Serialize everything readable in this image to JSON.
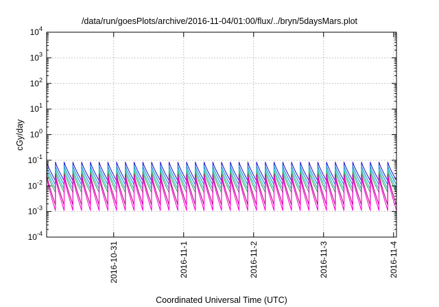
{
  "chart_data": {
    "type": "line",
    "title": "/data/run/goesPlots/archive/2016-11-04/01:00/flux/../bryn/5daysMars.plot",
    "xlabel": "Coordinated Universal Time (UTC)",
    "ylabel": "cGy/day",
    "yscale": "log",
    "ylim": [
      0.0001,
      10000
    ],
    "y_ticks": [
      {
        "base": "10",
        "exp": "-4",
        "value": 0.0001
      },
      {
        "base": "10",
        "exp": "-3",
        "value": 0.001
      },
      {
        "base": "10",
        "exp": "-2",
        "value": 0.01
      },
      {
        "base": "10",
        "exp": "-1",
        "value": 0.1
      },
      {
        "base": "10",
        "exp": "0",
        "value": 1
      },
      {
        "base": "10",
        "exp": "1",
        "value": 10
      },
      {
        "base": "10",
        "exp": "2",
        "value": 100
      },
      {
        "base": "10",
        "exp": "3",
        "value": 1000
      },
      {
        "base": "10",
        "exp": "4",
        "value": 10000
      }
    ],
    "xlim": [
      "2016-10-30T01:00",
      "2016-11-04T01:00"
    ],
    "x_ticks": [
      {
        "label": "2016-10-31",
        "value": "2016-10-31T00:00"
      },
      {
        "label": "2016-11-1",
        "value": "2016-11-01T00:00"
      },
      {
        "label": "2016-11-2",
        "value": "2016-11-02T00:00"
      },
      {
        "label": "2016-11-3",
        "value": "2016-11-03T00:00"
      },
      {
        "label": "2016-11-4",
        "value": "2016-11-04T00:00"
      }
    ],
    "grid": true,
    "legend": "none",
    "sawtooth_period_hours": 3,
    "series": [
      {
        "color": "#2b1fd0",
        "peak": 0.085,
        "trough": 0.016
      },
      {
        "color": "#1a8fd6",
        "peak": 0.06,
        "trough": 0.011
      },
      {
        "color": "#1fbfbf",
        "peak": 0.045,
        "trough": 0.0075
      },
      {
        "color": "#3aa860",
        "peak": 0.035,
        "trough": 0.0055
      },
      {
        "color": "#b0007a",
        "peak": 0.028,
        "trough": 0.0018
      },
      {
        "color": "#ff00d8",
        "peak": 0.022,
        "trough": 0.0011
      }
    ]
  }
}
